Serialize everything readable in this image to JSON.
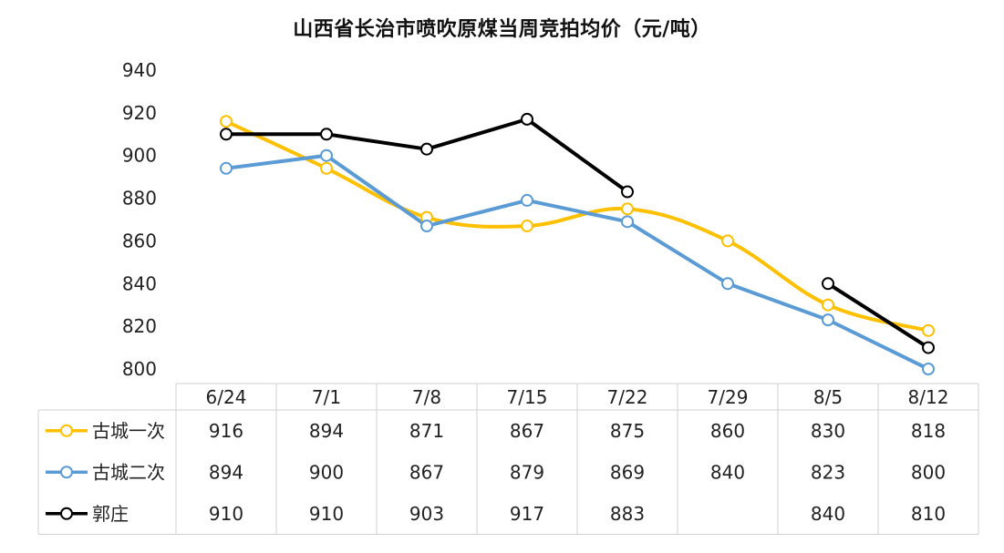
{
  "chart_data": {
    "type": "line",
    "title": "山西省长治市喷吹原煤当周竞拍均价（元/吨）",
    "categories": [
      "6/24",
      "7/1",
      "7/8",
      "7/15",
      "7/22",
      "7/29",
      "8/5",
      "8/12"
    ],
    "ylim": [
      800,
      940
    ],
    "yticks": [
      800,
      820,
      840,
      860,
      880,
      900,
      920,
      940
    ],
    "series": [
      {
        "name": "古城一次",
        "color": "#FFC000",
        "smooth": true,
        "values": [
          916,
          894,
          871,
          867,
          875,
          860,
          830,
          818
        ]
      },
      {
        "name": "古城二次",
        "color": "#5B9BD5",
        "smooth": false,
        "values": [
          894,
          900,
          867,
          879,
          869,
          840,
          823,
          800
        ]
      },
      {
        "name": "郭庄",
        "color": "#000000",
        "smooth": false,
        "values": [
          910,
          910,
          903,
          917,
          883,
          null,
          840,
          810
        ]
      }
    ],
    "data_table": true,
    "legend": "data-table-left"
  }
}
